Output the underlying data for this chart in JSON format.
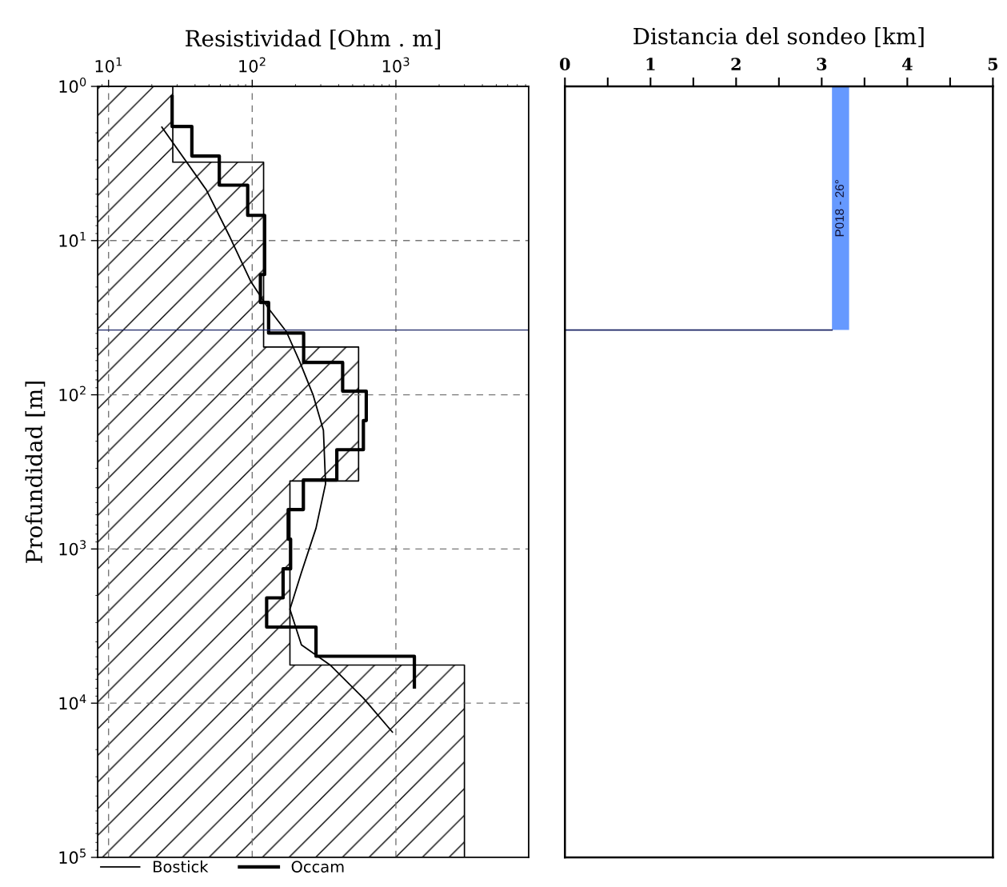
{
  "chart_data": [
    {
      "type": "line",
      "orientation": "horizontal",
      "xlabel": "Resistividad [Ohm . m]",
      "ylabel": "Profundidad [m]",
      "log": "xy",
      "xlim": [
        8.4,
        8400
      ],
      "ylim": [
        100000,
        1
      ],
      "xticks": [
        {
          "value": 10,
          "label": "10$^{1}$"
        },
        {
          "value": 100,
          "label": "10$^{2}$"
        },
        {
          "value": 1000,
          "label": "10$^{3}$"
        }
      ],
      "yticks": [
        {
          "value": 1,
          "label": "10$^{0}$"
        },
        {
          "value": 10,
          "label": "10$^{1}$"
        },
        {
          "value": 100,
          "label": "10$^{2}$"
        },
        {
          "value": 1000,
          "label": "10$^{3}$"
        },
        {
          "value": 10000,
          "label": "10$^{4}$"
        },
        {
          "value": 100000,
          "label": "10$^{5}$"
        }
      ],
      "grid": true,
      "legend": "bottom",
      "line_style": "solid",
      "marker": "none",
      "series": [
        {
          "type": "area",
          "color": "#000000",
          "x": [
            1,
            3.1,
            49,
            362,
            5660,
            100000
          ],
          "values": [
            28,
            120,
            550,
            183,
            3000,
            3000
          ]
        },
        {
          "type": "line",
          "name": "Bostick",
          "color": "#000000",
          "x": [
            1.84,
            4.7,
            9.5,
            18.5,
            27.6,
            39,
            61,
            100,
            170,
            378,
            733,
            1420,
            2460,
            4190,
            5700,
            9270,
            15400
          ],
          "values": [
            23.5,
            48,
            70,
            98,
            130,
            173,
            214,
            265,
            313,
            324,
            278,
            220,
            183,
            220,
            352,
            594,
            946
          ]
        },
        {
          "type": "step",
          "name": "Occam",
          "color": "#000000",
          "x": [
            1.17,
            1.82,
            2.83,
            4.37,
            6.86,
            16.6,
            25.2,
            39.8,
            61.7,
            94.8,
            147,
            227,
            357,
            555,
            863,
            1345,
            2075,
            3210,
            4960,
            7850
          ],
          "values": [
            27.7,
            38,
            59,
            93,
            122,
            114,
            130,
            228,
            426,
            622,
            594,
            388,
            227,
            178,
            185,
            164,
            126,
            278,
            1345,
            1345
          ]
        }
      ],
      "ref_lines": [
        {
          "axis": "y",
          "value": 38,
          "color": "#1c2566"
        }
      ]
    },
    {
      "type": "bar",
      "xlabel": "Distancia del sondeo [km]",
      "log": "y",
      "xlim": [
        0,
        5
      ],
      "ylim": [
        100000,
        1
      ],
      "tick_labels": "x",
      "xticks": [
        0,
        {
          "value": 0.5,
          "label": null
        },
        1,
        {
          "value": 1.5,
          "label": null
        },
        2,
        {
          "value": 2.5,
          "label": null
        },
        3,
        {
          "value": 3.5,
          "label": null
        },
        4,
        {
          "value": 4.5,
          "label": null
        },
        5
      ],
      "series": [
        {
          "type": "bar",
          "color": "#6699ff",
          "x": [
            3.22
          ],
          "base": [
            1
          ],
          "values": [
            37
          ],
          "value_labels": [
            "P018 - 26°"
          ]
        },
        {
          "type": "line",
          "color": "#1c2566",
          "x": [
            0,
            3.12
          ],
          "values": [
            38,
            38
          ]
        }
      ]
    }
  ]
}
